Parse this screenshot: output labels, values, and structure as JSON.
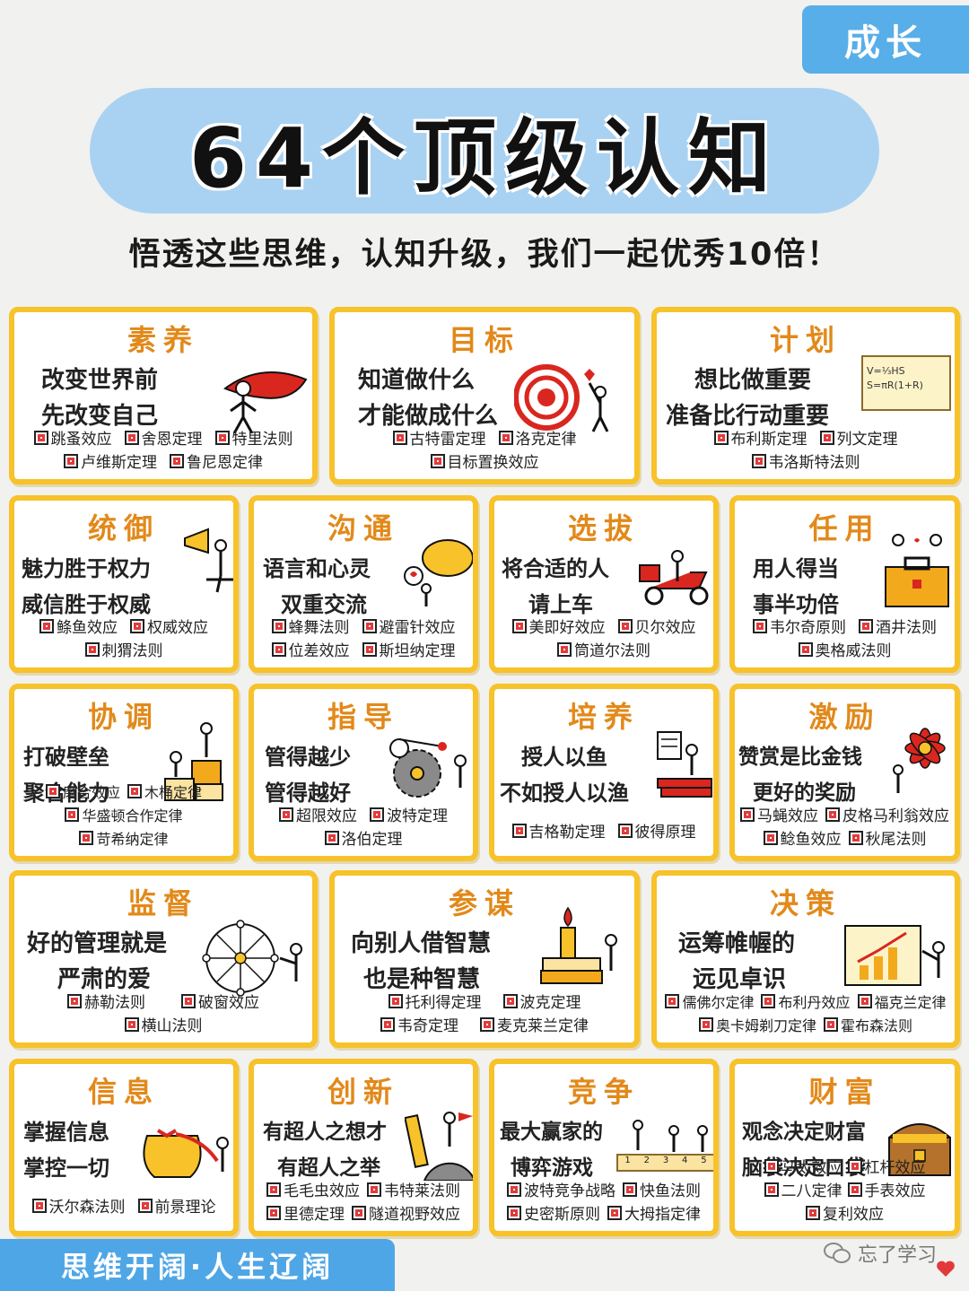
{
  "tag": "成长",
  "title": "64个顶级认知",
  "subtitle": "悟透这些思维，认知升级，我们一起优秀10倍！",
  "cards": [
    {
      "title": "素养",
      "slogan": [
        "改变世界前",
        "先改变自己"
      ],
      "laws": [
        "跳蚤效应",
        "舍恩定理",
        "特里法则",
        "卢维斯定理",
        "鲁尼恩定律"
      ]
    },
    {
      "title": "目标",
      "slogan": [
        "知道做什么",
        "才能做成什么"
      ],
      "laws": [
        "古特雷定理",
        "洛克定律",
        "目标置换效应"
      ]
    },
    {
      "title": "计划",
      "slogan": [
        "想比做重要",
        "准备比行动重要"
      ],
      "laws": [
        "布利斯定理",
        "列文定理",
        "韦洛斯特法则"
      ],
      "formula": [
        "V=⅓HS",
        "S=πR(1+R)"
      ]
    },
    {
      "title": "统御",
      "slogan": [
        "魅力胜于权力",
        "威信胜于权威"
      ],
      "laws": [
        "鲦鱼效应",
        "权威效应",
        "刺猬法则"
      ]
    },
    {
      "title": "沟通",
      "slogan": [
        "语言和心灵",
        "双重交流"
      ],
      "laws": [
        "蜂舞法则",
        "避雷针效应",
        "位差效应",
        "斯坦纳定理"
      ]
    },
    {
      "title": "选拔",
      "slogan": [
        "将合适的人",
        "请上车"
      ],
      "laws": [
        "美即好效应",
        "贝尔效应",
        "筒道尔法则"
      ]
    },
    {
      "title": "任用",
      "slogan": [
        "用人得当",
        "事半功倍"
      ],
      "laws": [
        "韦尔奇原则",
        "酒井法则",
        "奥格威法则"
      ]
    },
    {
      "title": "协调",
      "slogan": [
        "打破壁垒",
        "聚合能力"
      ],
      "laws": [
        "磨合效应",
        "木桶定律",
        "华盛顿合作定律",
        "苛希纳定律"
      ]
    },
    {
      "title": "指导",
      "slogan": [
        "管得越少",
        "管得越好"
      ],
      "laws": [
        "超限效应",
        "波特定理",
        "洛伯定理"
      ]
    },
    {
      "title": "培养",
      "slogan": [
        "授人以鱼",
        "不如授人以渔"
      ],
      "laws": [
        "吉格勒定理",
        "彼得原理"
      ]
    },
    {
      "title": "激励",
      "slogan": [
        "赞赏是比金钱",
        "更好的奖励"
      ],
      "laws": [
        "马蝇效应",
        "皮格马利翁效应",
        "鲶鱼效应",
        "秋尾法则"
      ]
    },
    {
      "title": "监督",
      "slogan": [
        "好的管理就是",
        "严肃的爱"
      ],
      "laws": [
        "赫勒法则",
        "破窗效应",
        "横山法则"
      ]
    },
    {
      "title": "参谋",
      "slogan": [
        "向别人借智慧",
        "也是种智慧"
      ],
      "laws": [
        "托利得定理",
        "波克定理",
        "韦奇定理",
        "麦克莱兰定律"
      ]
    },
    {
      "title": "决策",
      "slogan": [
        "运筹帷幄的",
        "远见卓识"
      ],
      "laws": [
        "儒佛尔定律",
        "布利丹效应",
        "福克兰定律",
        "奥卡姆剃刀定律",
        "霍布森法则"
      ]
    },
    {
      "title": "信息",
      "slogan": [
        "掌握信息",
        "掌控一切"
      ],
      "laws": [
        "沃尔森法则",
        "前景理论"
      ]
    },
    {
      "title": "创新",
      "slogan": [
        "有超人之想才",
        "有超人之举"
      ],
      "laws": [
        "毛毛虫效应",
        "韦特莱法则",
        "里德定理",
        "隧道视野效应"
      ]
    },
    {
      "title": "竞争",
      "slogan": [
        "最大赢家的",
        "博弈游戏"
      ],
      "laws": [
        "波特竞争战略",
        "快鱼法则",
        "史密斯原则",
        "大拇指定律"
      ],
      "podium": [
        "1",
        "2",
        "3",
        "4",
        "5"
      ]
    },
    {
      "title": "财富",
      "slogan": [
        "观念决定财富",
        "脑袋决定口袋"
      ],
      "laws": [
        "马太效应",
        "杠杆效应",
        "二八定律",
        "手表效应",
        "复利效应"
      ]
    }
  ],
  "footer": "思维开阔·人生辽阔",
  "watermark": "忘了学习",
  "colors": {
    "accent": "#f7c22a",
    "title_orange": "#e2891a",
    "blue": "#58aee8",
    "red": "#e23a3a"
  }
}
